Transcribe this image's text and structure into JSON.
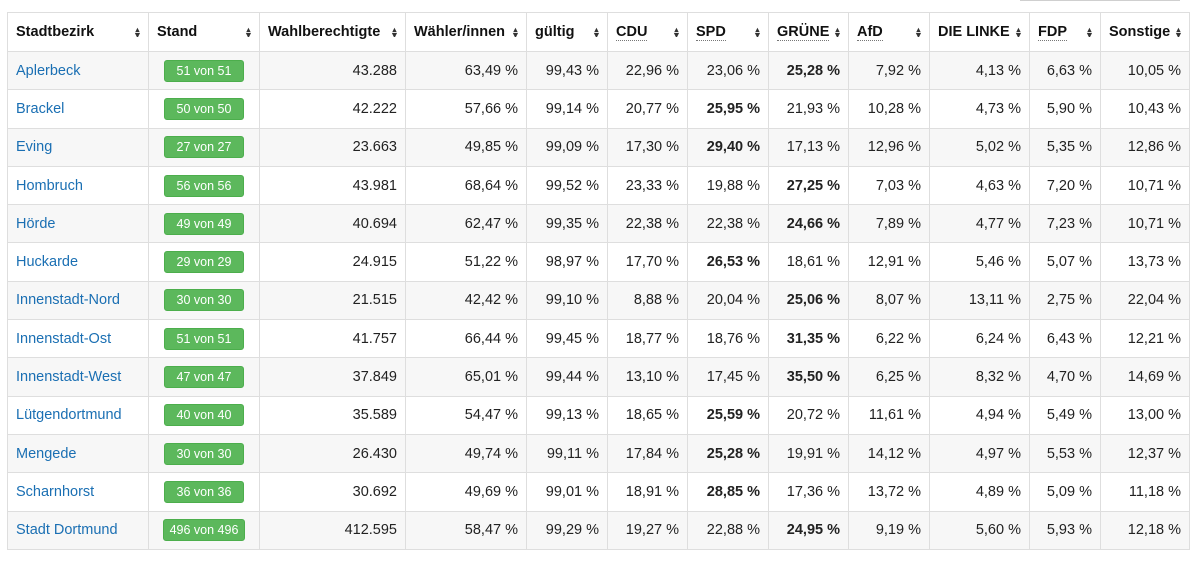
{
  "table": {
    "headers": [
      {
        "key": "stadtbezirk",
        "label": "Stadtbezirk",
        "underlined": false
      },
      {
        "key": "stand",
        "label": "Stand",
        "underlined": false
      },
      {
        "key": "wahlberechtigte",
        "label": "Wahlberechtigte",
        "underlined": false
      },
      {
        "key": "waehler",
        "label": "Wähler/innen",
        "underlined": false
      },
      {
        "key": "gueltig",
        "label": "gültig",
        "underlined": false
      },
      {
        "key": "cdu",
        "label": "CDU",
        "underlined": true
      },
      {
        "key": "spd",
        "label": "SPD",
        "underlined": true
      },
      {
        "key": "gruene",
        "label": "GRÜNE",
        "underlined": true
      },
      {
        "key": "afd",
        "label": "AfD",
        "underlined": true
      },
      {
        "key": "linke",
        "label": "DIE LINKE",
        "underlined": false
      },
      {
        "key": "fdp",
        "label": "FDP",
        "underlined": true
      },
      {
        "key": "sonstige",
        "label": "Sonstige",
        "underlined": false
      }
    ],
    "rows": [
      {
        "name": "Aplerbeck",
        "stand": "51 von 51",
        "wahlberechtigte": "43.288",
        "waehler": "63,49 %",
        "gueltig": "99,43 %",
        "cdu": "22,96 %",
        "spd": "23,06 %",
        "gruene": "25,28 %",
        "afd": "7,92 %",
        "linke": "4,13 %",
        "fdp": "6,63 %",
        "sonstige": "10,05 %",
        "winner": "gruene"
      },
      {
        "name": "Brackel",
        "stand": "50 von 50",
        "wahlberechtigte": "42.222",
        "waehler": "57,66 %",
        "gueltig": "99,14 %",
        "cdu": "20,77 %",
        "spd": "25,95 %",
        "gruene": "21,93 %",
        "afd": "10,28 %",
        "linke": "4,73 %",
        "fdp": "5,90 %",
        "sonstige": "10,43 %",
        "winner": "spd"
      },
      {
        "name": "Eving",
        "stand": "27 von 27",
        "wahlberechtigte": "23.663",
        "waehler": "49,85 %",
        "gueltig": "99,09 %",
        "cdu": "17,30 %",
        "spd": "29,40 %",
        "gruene": "17,13 %",
        "afd": "12,96 %",
        "linke": "5,02 %",
        "fdp": "5,35 %",
        "sonstige": "12,86 %",
        "winner": "spd"
      },
      {
        "name": "Hombruch",
        "stand": "56 von 56",
        "wahlberechtigte": "43.981",
        "waehler": "68,64 %",
        "gueltig": "99,52 %",
        "cdu": "23,33 %",
        "spd": "19,88 %",
        "gruene": "27,25 %",
        "afd": "7,03 %",
        "linke": "4,63 %",
        "fdp": "7,20 %",
        "sonstige": "10,71 %",
        "winner": "gruene"
      },
      {
        "name": "Hörde",
        "stand": "49 von 49",
        "wahlberechtigte": "40.694",
        "waehler": "62,47 %",
        "gueltig": "99,35 %",
        "cdu": "22,38 %",
        "spd": "22,38 %",
        "gruene": "24,66 %",
        "afd": "7,89 %",
        "linke": "4,77 %",
        "fdp": "7,23 %",
        "sonstige": "10,71 %",
        "winner": "gruene"
      },
      {
        "name": "Huckarde",
        "stand": "29 von 29",
        "wahlberechtigte": "24.915",
        "waehler": "51,22 %",
        "gueltig": "98,97 %",
        "cdu": "17,70 %",
        "spd": "26,53 %",
        "gruene": "18,61 %",
        "afd": "12,91 %",
        "linke": "5,46 %",
        "fdp": "5,07 %",
        "sonstige": "13,73 %",
        "winner": "spd"
      },
      {
        "name": "Innenstadt-Nord",
        "stand": "30 von 30",
        "wahlberechtigte": "21.515",
        "waehler": "42,42 %",
        "gueltig": "99,10 %",
        "cdu": "8,88 %",
        "spd": "20,04 %",
        "gruene": "25,06 %",
        "afd": "8,07 %",
        "linke": "13,11 %",
        "fdp": "2,75 %",
        "sonstige": "22,04 %",
        "winner": "gruene"
      },
      {
        "name": "Innenstadt-Ost",
        "stand": "51 von 51",
        "wahlberechtigte": "41.757",
        "waehler": "66,44 %",
        "gueltig": "99,45 %",
        "cdu": "18,77 %",
        "spd": "18,76 %",
        "gruene": "31,35 %",
        "afd": "6,22 %",
        "linke": "6,24 %",
        "fdp": "6,43 %",
        "sonstige": "12,21 %",
        "winner": "gruene"
      },
      {
        "name": "Innenstadt-West",
        "stand": "47 von 47",
        "wahlberechtigte": "37.849",
        "waehler": "65,01 %",
        "gueltig": "99,44 %",
        "cdu": "13,10 %",
        "spd": "17,45 %",
        "gruene": "35,50 %",
        "afd": "6,25 %",
        "linke": "8,32 %",
        "fdp": "4,70 %",
        "sonstige": "14,69 %",
        "winner": "gruene"
      },
      {
        "name": "Lütgendortmund",
        "stand": "40 von 40",
        "wahlberechtigte": "35.589",
        "waehler": "54,47 %",
        "gueltig": "99,13 %",
        "cdu": "18,65 %",
        "spd": "25,59 %",
        "gruene": "20,72 %",
        "afd": "11,61 %",
        "linke": "4,94 %",
        "fdp": "5,49 %",
        "sonstige": "13,00 %",
        "winner": "spd"
      },
      {
        "name": "Mengede",
        "stand": "30 von 30",
        "wahlberechtigte": "26.430",
        "waehler": "49,74 %",
        "gueltig": "99,11 %",
        "cdu": "17,84 %",
        "spd": "25,28 %",
        "gruene": "19,91 %",
        "afd": "14,12 %",
        "linke": "4,97 %",
        "fdp": "5,53 %",
        "sonstige": "12,37 %",
        "winner": "spd"
      },
      {
        "name": "Scharnhorst",
        "stand": "36 von 36",
        "wahlberechtigte": "30.692",
        "waehler": "49,69 %",
        "gueltig": "99,01 %",
        "cdu": "18,91 %",
        "spd": "28,85 %",
        "gruene": "17,36 %",
        "afd": "13,72 %",
        "linke": "4,89 %",
        "fdp": "5,09 %",
        "sonstige": "11,18 %",
        "winner": "spd"
      },
      {
        "name": "Stadt Dortmund",
        "stand": "496 von 496",
        "wahlberechtigte": "412.595",
        "waehler": "58,47 %",
        "gueltig": "99,29 %",
        "cdu": "19,27 %",
        "spd": "22,88 %",
        "gruene": "24,95 %",
        "afd": "9,19 %",
        "linke": "5,60 %",
        "fdp": "5,93 %",
        "sonstige": "12,18 %",
        "winner": "gruene"
      }
    ]
  },
  "colors": {
    "badge": "#5cb85c",
    "link": "#1a6fb3",
    "row_alt": "#f7f7f7",
    "border": "#dedede"
  },
  "icons": {
    "sort": "sort-icon"
  }
}
